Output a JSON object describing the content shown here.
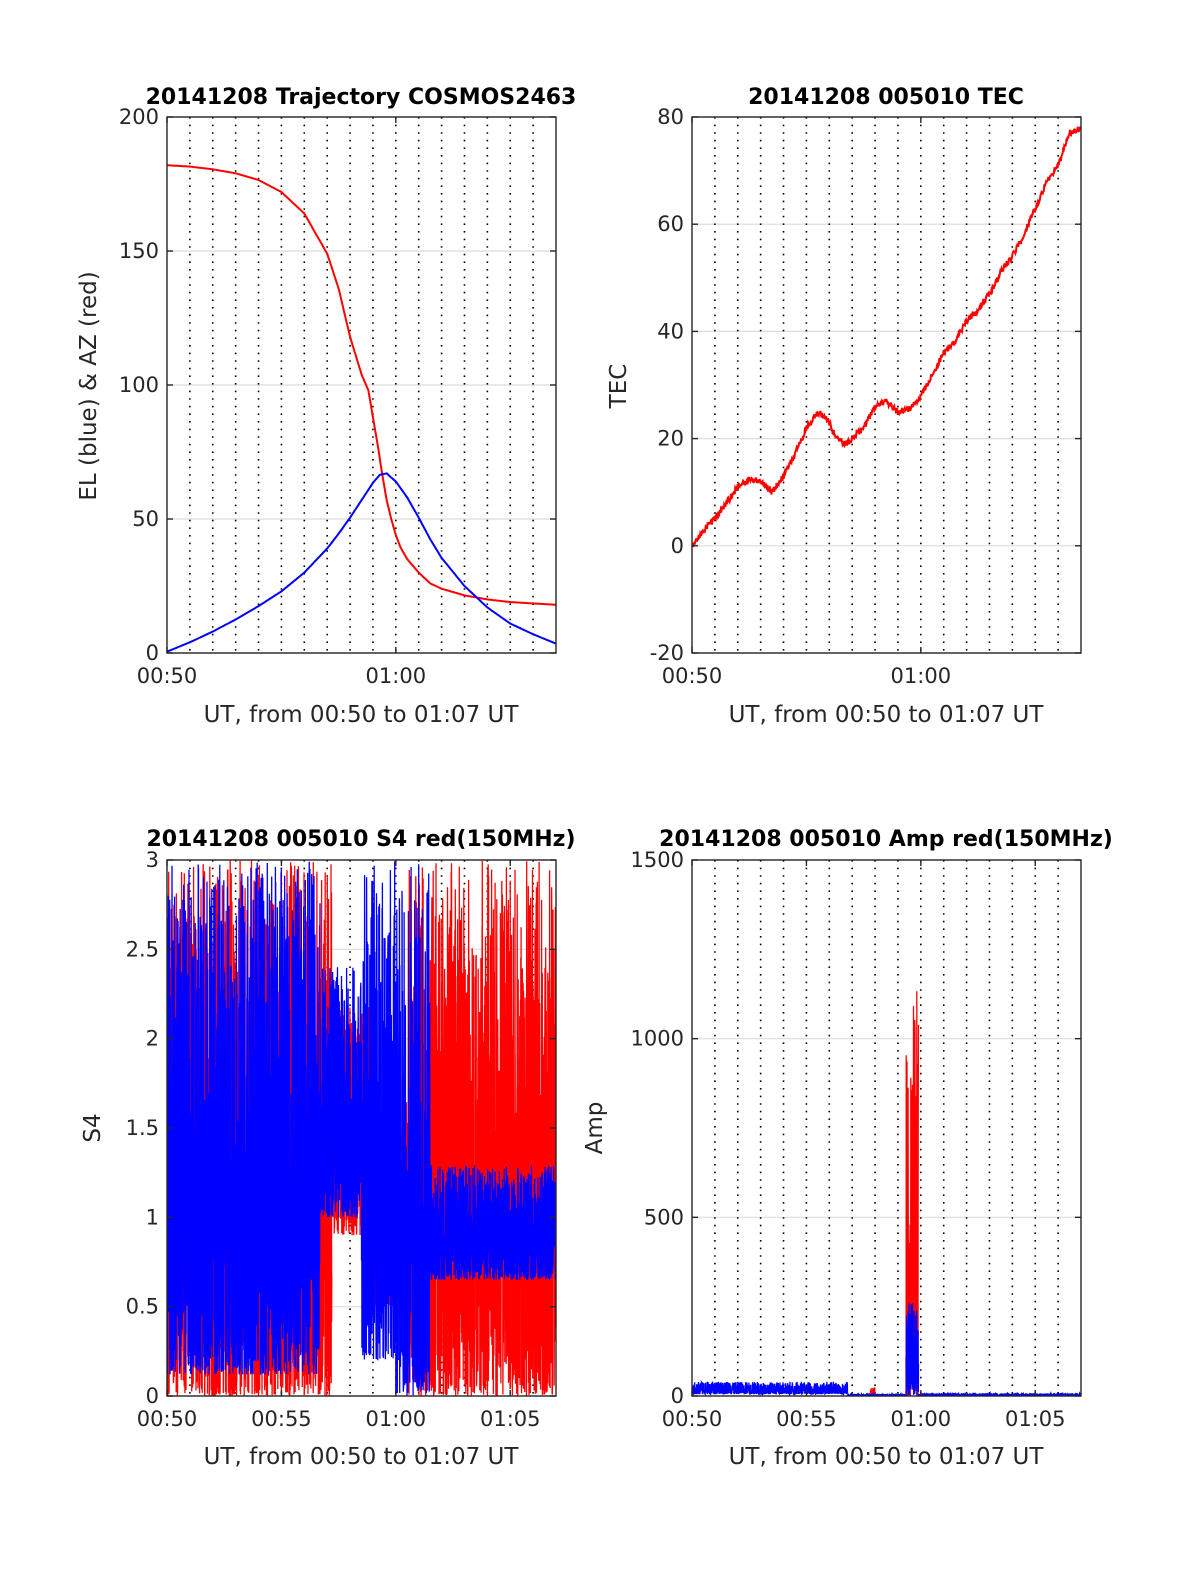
{
  "colors": {
    "red": "#ff0000",
    "blue": "#0000ff",
    "grid_major": "#dcdcdc",
    "minor_dots": "#000000",
    "axes": "#262626"
  },
  "chart_data": [
    {
      "id": "trajectory",
      "type": "line",
      "title": "20141208 Trajectory COSMOS2463",
      "xlabel": "UT, from 00:50 to 01:07 UT",
      "ylabel": "EL (blue) & AZ (red)",
      "xlim": [
        0,
        17
      ],
      "xunit": "minutes after 00:50 UT",
      "ylim": [
        0,
        200
      ],
      "yticks": [
        0,
        50,
        100,
        150,
        200
      ],
      "xticks": [
        {
          "v": 0,
          "label": "00:50"
        },
        {
          "v": 10,
          "label": "01:00"
        }
      ],
      "grid": "horizontal major lines, dotted vertical minor lines every minute",
      "series": [
        {
          "color": "red",
          "x": [
            0,
            1,
            2,
            3,
            4,
            5,
            6,
            7,
            7.5,
            8,
            8.5,
            8.8,
            9,
            9.2,
            9.4,
            9.6,
            9.8,
            10,
            10.2,
            10.5,
            11,
            11.5,
            12,
            13,
            14,
            15,
            16,
            17
          ],
          "values": [
            182,
            181.5,
            180.5,
            179,
            176.5,
            172,
            164,
            149,
            136,
            118,
            104,
            98,
            88,
            78,
            67,
            57,
            50,
            44,
            39.5,
            35,
            30,
            26,
            24,
            21.5,
            20,
            19,
            18.5,
            18
          ]
        },
        {
          "color": "blue",
          "x": [
            0,
            1,
            2,
            3,
            4,
            5,
            6,
            7,
            7.5,
            8,
            8.5,
            9,
            9.3,
            9.6,
            10,
            10.5,
            11,
            11.5,
            12,
            13,
            14,
            15,
            16,
            17
          ],
          "values": [
            0.5,
            4,
            8,
            12.5,
            17.5,
            23,
            30,
            39,
            44.5,
            50.5,
            57,
            63.5,
            66.5,
            67,
            64,
            58,
            50.5,
            42.5,
            35.5,
            25,
            17,
            11,
            7,
            3.5
          ]
        }
      ]
    },
    {
      "id": "tec",
      "type": "line",
      "title": "20141208 005010 TEC",
      "xlabel": "UT, from 00:50 to 01:07 UT",
      "ylabel": "TEC",
      "xlim": [
        0,
        17
      ],
      "xunit": "minutes after 00:50 UT",
      "ylim": [
        -20,
        80
      ],
      "yticks": [
        -20,
        0,
        20,
        40,
        60,
        80
      ],
      "xticks": [
        {
          "v": 0,
          "label": "00:50"
        },
        {
          "v": 10,
          "label": "01:00"
        }
      ],
      "grid": "horizontal major lines, dotted vertical minor lines every minute",
      "series": [
        {
          "color": "red",
          "noise": 0.6,
          "x": [
            0,
            0.5,
            1,
            1.5,
            2,
            2.5,
            3,
            3.5,
            4,
            4.5,
            5,
            5.5,
            6,
            6.3,
            6.7,
            7,
            7.5,
            8,
            8.5,
            9,
            9.5,
            10,
            10.5,
            11,
            11.5,
            12,
            12.5,
            13,
            13.5,
            14,
            14.5,
            15,
            15.5,
            16,
            16.5,
            17
          ],
          "values": [
            0,
            3,
            5,
            8,
            11,
            12.5,
            12,
            10,
            13,
            17,
            22,
            25,
            23,
            20,
            19,
            20,
            22,
            26,
            27,
            25,
            25.5,
            28,
            32,
            36,
            38,
            42,
            44,
            47,
            51,
            54,
            58,
            63,
            68,
            71,
            77,
            78
          ]
        }
      ]
    },
    {
      "id": "s4",
      "type": "line",
      "title": "20141208 005010 S4 red(150MHz)",
      "xlabel": "UT, from 00:50 to 01:07 UT",
      "ylabel": "S4",
      "xlim": [
        0,
        17
      ],
      "xunit": "minutes after 00:50 UT",
      "ylim": [
        0,
        3
      ],
      "yticks": [
        0,
        0.5,
        1,
        1.5,
        2,
        2.5,
        3
      ],
      "ytick_labels": [
        "0",
        "0.5",
        "1",
        "1.5",
        "2",
        "2.5",
        "3"
      ],
      "xticks": [
        {
          "v": 0,
          "label": "00:50"
        },
        {
          "v": 5,
          "label": "00:55"
        },
        {
          "v": 10,
          "label": "01:00"
        },
        {
          "v": 15,
          "label": "01:05"
        }
      ],
      "grid": "horizontal major lines, dotted vertical minor lines every minute",
      "series": [
        {
          "color": "red",
          "kind": "noisy",
          "segments": [
            {
              "x0": 0,
              "x1": 7.2,
              "lo": 0,
              "hi": 3.0
            },
            {
              "x0": 7.2,
              "x1": 9.0,
              "lo": 0.9,
              "hi": 2.2
            },
            {
              "x0": 9.0,
              "x1": 10.5,
              "lo": 0.5,
              "hi": 1.8
            },
            {
              "x0": 10.5,
              "x1": 17,
              "lo": 0,
              "hi": 3.0
            }
          ]
        },
        {
          "color": "blue",
          "kind": "noisy",
          "segments": [
            {
              "x0": 0,
              "x1": 6.7,
              "lo": 0.12,
              "hi": 3.0
            },
            {
              "x0": 6.7,
              "x1": 8.5,
              "lo": 1.0,
              "hi": 2.4
            },
            {
              "x0": 8.5,
              "x1": 10.0,
              "lo": 0.2,
              "hi": 3.0
            },
            {
              "x0": 10.0,
              "x1": 11.5,
              "lo": 0,
              "hi": 3.0
            },
            {
              "x0": 11.5,
              "x1": 17,
              "lo": 0.65,
              "hi": 1.3
            }
          ]
        }
      ]
    },
    {
      "id": "amp",
      "type": "line",
      "title": "20141208 005010 Amp red(150MHz)",
      "xlabel": "UT, from 00:50 to 01:07 UT",
      "ylabel": "Amp",
      "xlim": [
        0,
        17
      ],
      "xunit": "minutes after 00:50 UT",
      "ylim": [
        0,
        1500
      ],
      "yticks": [
        0,
        500,
        1000,
        1500
      ],
      "xticks": [
        {
          "v": 0,
          "label": "00:50"
        },
        {
          "v": 5,
          "label": "00:55"
        },
        {
          "v": 10,
          "label": "01:00"
        },
        {
          "v": 15,
          "label": "01:05"
        }
      ],
      "grid": "horizontal major lines, dotted vertical minor lines every minute",
      "series": [
        {
          "color": "red",
          "kind": "noisy",
          "segments": [
            {
              "x0": 7.8,
              "x1": 8.0,
              "lo": 0,
              "hi": 25
            },
            {
              "x0": 9.35,
              "x1": 9.9,
              "lo": 0,
              "hi": 1140
            }
          ]
        },
        {
          "color": "blue",
          "kind": "noisy",
          "segments": [
            {
              "x0": 0,
              "x1": 6.8,
              "lo": 5,
              "hi": 40
            },
            {
              "x0": 6.8,
              "x1": 9.35,
              "lo": 0,
              "hi": 6
            },
            {
              "x0": 9.35,
              "x1": 9.9,
              "lo": 0,
              "hi": 260
            },
            {
              "x0": 9.9,
              "x1": 17,
              "lo": 0,
              "hi": 8
            }
          ]
        }
      ]
    }
  ]
}
